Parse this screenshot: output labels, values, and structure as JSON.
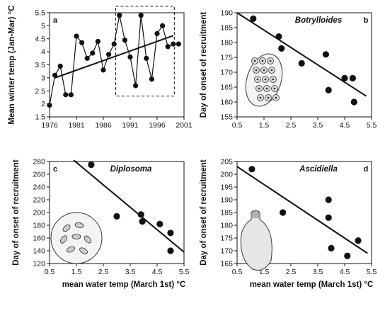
{
  "chart_data": [
    {
      "type": "line",
      "panel_label": "a",
      "title": "",
      "xlabel": "",
      "ylabel": "Mean winter temp (Jan-Mar) °C",
      "xlim": [
        1976,
        2001
      ],
      "ylim": [
        1.5,
        5.5
      ],
      "xticks": [
        "1976",
        "1981",
        "1986",
        "1991",
        "1996",
        "2001"
      ],
      "yticks": [
        "1.5",
        "2",
        "2.5",
        "3",
        "3.5",
        "4",
        "4.5",
        "5",
        "5.5"
      ],
      "series": [
        {
          "x": [
            1976,
            1977,
            1978,
            1979,
            1980,
            1981,
            1982,
            1983,
            1984,
            1985,
            1986,
            1987,
            1988,
            1989,
            1990,
            1991,
            1992,
            1993,
            1994,
            1995,
            1996,
            1997,
            1998,
            1999,
            2000
          ],
          "y": [
            1.95,
            3.1,
            3.45,
            2.35,
            2.35,
            4.6,
            4.35,
            3.75,
            3.95,
            4.4,
            3.3,
            3.9,
            4.3,
            5.4,
            4.45,
            3.8,
            2.7,
            5.4,
            3.75,
            2.95,
            4.7,
            5.0,
            4.2,
            4.3,
            4.3
          ]
        }
      ],
      "trend_line": {
        "x": [
          1977,
          1999
        ],
        "y": [
          3.0,
          4.62
        ]
      },
      "highlight_box_x": [
        1988.3,
        1999.2
      ],
      "highlight_box_y": [
        2.3,
        5.75
      ]
    },
    {
      "type": "scatter",
      "panel_label": "b",
      "title": "Botrylloides",
      "xlabel": "",
      "ylabel": "Day of onset of recruitment",
      "xlim": [
        0.5,
        5.5
      ],
      "ylim": [
        155,
        190
      ],
      "xticks": [
        "0.5",
        "1.5",
        "2.5",
        "3.5",
        "4.5",
        "5.5"
      ],
      "yticks": [
        "155",
        "160",
        "165",
        "170",
        "175",
        "180",
        "185",
        "190"
      ],
      "points": {
        "x": [
          1.1,
          2.05,
          2.15,
          2.9,
          3.8,
          3.9,
          4.5,
          4.8,
          4.85
        ],
        "y": [
          188,
          182,
          178,
          173,
          176,
          164,
          168,
          168,
          160
        ]
      },
      "regression": {
        "x": [
          0.5,
          5.3
        ],
        "y": [
          190,
          162
        ]
      }
    },
    {
      "type": "scatter",
      "panel_label": "c",
      "title": "Diplosoma",
      "xlabel": "mean water temp (March 1st) °C",
      "ylabel": "Day of onset of recruitment",
      "xlim": [
        0.5,
        5.5
      ],
      "ylim": [
        120,
        280
      ],
      "xticks": [
        "0.5",
        "1.5",
        "2.5",
        "3.5",
        "4.5",
        "5.5"
      ],
      "yticks": [
        "120",
        "140",
        "160",
        "180",
        "200",
        "220",
        "240",
        "260",
        "280"
      ],
      "points": {
        "x": [
          2.05,
          3.0,
          3.9,
          3.95,
          4.6,
          5.0,
          5.0
        ],
        "y": [
          275,
          194,
          197,
          186,
          182,
          168,
          140
        ]
      },
      "regression": {
        "x": [
          1.4,
          5.5
        ],
        "y": [
          282,
          138
        ]
      }
    },
    {
      "type": "scatter",
      "panel_label": "d",
      "title": "Ascidiella",
      "xlabel": "mean water temp (March 1st) °C",
      "ylabel": "Day of onset of recruitment",
      "xlim": [
        0.5,
        5.5
      ],
      "ylim": [
        165,
        205
      ],
      "xticks": [
        "0.5",
        "1.5",
        "2.5",
        "3.5",
        "4.5",
        "5.5"
      ],
      "yticks": [
        "165",
        "170",
        "175",
        "180",
        "185",
        "190",
        "195",
        "200",
        "205"
      ],
      "points": {
        "x": [
          1.05,
          2.2,
          3.9,
          3.9,
          4.0,
          4.6,
          5.0
        ],
        "y": [
          202,
          185,
          190,
          183,
          171,
          168,
          174
        ]
      },
      "regression": {
        "x": [
          0.5,
          5.35
        ],
        "y": [
          203,
          169
        ]
      }
    }
  ]
}
